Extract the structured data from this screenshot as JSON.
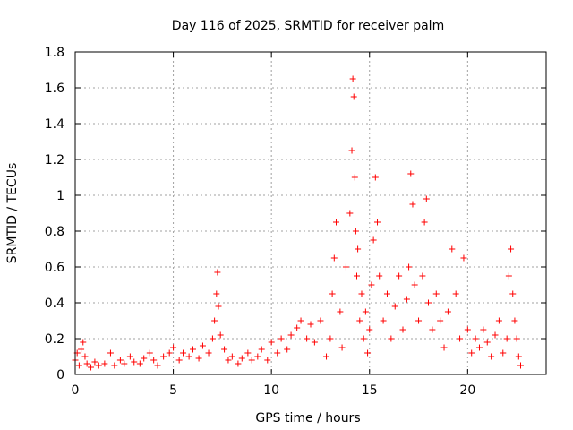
{
  "chart_data": {
    "type": "scatter",
    "title": "Day 116 of 2025, SRMTID for receiver palm",
    "xlabel": "GPS time / hours",
    "ylabel": "SRMTID / TECUs",
    "xlim": [
      0,
      24
    ],
    "ylim": [
      0,
      1.8
    ],
    "xticks": [
      0,
      5,
      10,
      15,
      20
    ],
    "yticks": [
      0,
      0.2,
      0.4,
      0.6,
      0.8,
      1,
      1.2,
      1.4,
      1.6,
      1.8
    ],
    "xtick_labels": [
      "0",
      "5",
      "10",
      "15",
      "20"
    ],
    "ytick_labels": [
      "0",
      "0.2",
      "0.4",
      "0.6",
      "0.8",
      "1",
      "1.2",
      "1.4",
      "1.6",
      "1.8"
    ],
    "grid": true,
    "marker": "plus",
    "series_color": "#ff0000",
    "series": [
      {
        "name": "SRMTID",
        "x": [
          0.0,
          0.1,
          0.2,
          0.3,
          0.4,
          0.5,
          0.6,
          0.8,
          1.0,
          1.2,
          1.5,
          1.8,
          2.0,
          2.3,
          2.5,
          2.8,
          3.0,
          3.3,
          3.5,
          3.8,
          4.0,
          4.2,
          4.5,
          4.8,
          5.0,
          5.3,
          5.5,
          5.8,
          6.0,
          6.3,
          6.5,
          6.8,
          7.0,
          7.1,
          7.2,
          7.25,
          7.3,
          7.4,
          7.6,
          7.8,
          8.0,
          8.3,
          8.5,
          8.8,
          9.0,
          9.3,
          9.5,
          9.8,
          10.0,
          10.3,
          10.5,
          10.8,
          11.0,
          11.3,
          11.5,
          11.8,
          12.0,
          12.2,
          12.5,
          12.8,
          13.0,
          13.1,
          13.2,
          13.3,
          13.5,
          13.6,
          13.8,
          14.0,
          14.1,
          14.15,
          14.2,
          14.25,
          14.3,
          14.35,
          14.4,
          14.5,
          14.6,
          14.7,
          14.8,
          14.9,
          15.0,
          15.1,
          15.2,
          15.3,
          15.4,
          15.5,
          15.7,
          15.9,
          16.1,
          16.3,
          16.5,
          16.7,
          16.9,
          17.0,
          17.1,
          17.2,
          17.3,
          17.5,
          17.7,
          17.8,
          17.9,
          18.0,
          18.2,
          18.4,
          18.6,
          18.8,
          19.0,
          19.2,
          19.4,
          19.6,
          19.8,
          20.0,
          20.2,
          20.4,
          20.6,
          20.8,
          21.0,
          21.2,
          21.4,
          21.6,
          21.8,
          22.0,
          22.1,
          22.2,
          22.3,
          22.4,
          22.5,
          22.6,
          22.7
        ],
        "values": [
          0.08,
          0.12,
          0.05,
          0.14,
          0.18,
          0.1,
          0.06,
          0.04,
          0.07,
          0.05,
          0.06,
          0.12,
          0.05,
          0.08,
          0.06,
          0.1,
          0.07,
          0.06,
          0.09,
          0.12,
          0.08,
          0.05,
          0.1,
          0.12,
          0.15,
          0.08,
          0.12,
          0.1,
          0.14,
          0.09,
          0.16,
          0.12,
          0.2,
          0.3,
          0.45,
          0.57,
          0.38,
          0.22,
          0.14,
          0.08,
          0.1,
          0.06,
          0.09,
          0.12,
          0.08,
          0.1,
          0.14,
          0.08,
          0.18,
          0.12,
          0.2,
          0.14,
          0.22,
          0.26,
          0.3,
          0.2,
          0.28,
          0.18,
          0.3,
          0.1,
          0.2,
          0.45,
          0.65,
          0.85,
          0.35,
          0.15,
          0.6,
          0.9,
          1.25,
          1.65,
          1.55,
          1.1,
          0.8,
          0.55,
          0.7,
          0.3,
          0.45,
          0.2,
          0.35,
          0.12,
          0.25,
          0.5,
          0.75,
          1.1,
          0.85,
          0.55,
          0.3,
          0.45,
          0.2,
          0.38,
          0.55,
          0.25,
          0.42,
          0.6,
          1.12,
          0.95,
          0.5,
          0.3,
          0.55,
          0.85,
          0.98,
          0.4,
          0.25,
          0.45,
          0.3,
          0.15,
          0.35,
          0.7,
          0.45,
          0.2,
          0.65,
          0.25,
          0.12,
          0.2,
          0.15,
          0.25,
          0.18,
          0.1,
          0.22,
          0.3,
          0.12,
          0.2,
          0.55,
          0.7,
          0.45,
          0.3,
          0.2,
          0.1,
          0.05
        ]
      }
    ]
  }
}
